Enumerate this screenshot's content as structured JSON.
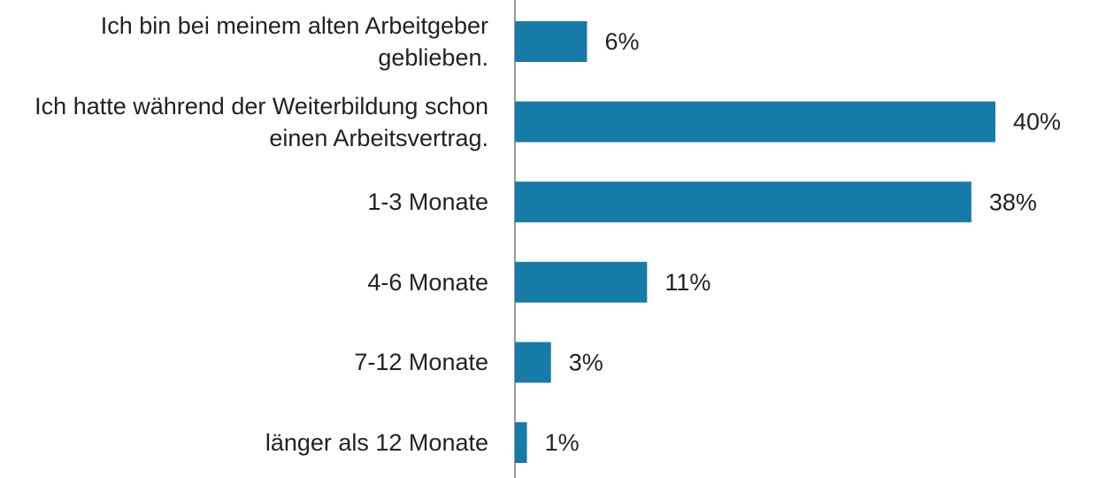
{
  "chart_data": {
    "type": "bar",
    "orientation": "horizontal",
    "categories": [
      "Ich bin bei meinem alten Arbeitgeber geblieben.",
      "Ich hatte während der Weiterbildung schon einen Arbeitsvertrag.",
      "1-3 Monate",
      "4-6 Monate",
      "7-12 Monate",
      "länger als 12 Monate"
    ],
    "values": [
      6,
      40,
      38,
      11,
      3,
      1
    ],
    "value_labels": [
      "6%",
      "40%",
      "38%",
      "11%",
      "3%",
      "1%"
    ],
    "color": "#177ba8"
  }
}
